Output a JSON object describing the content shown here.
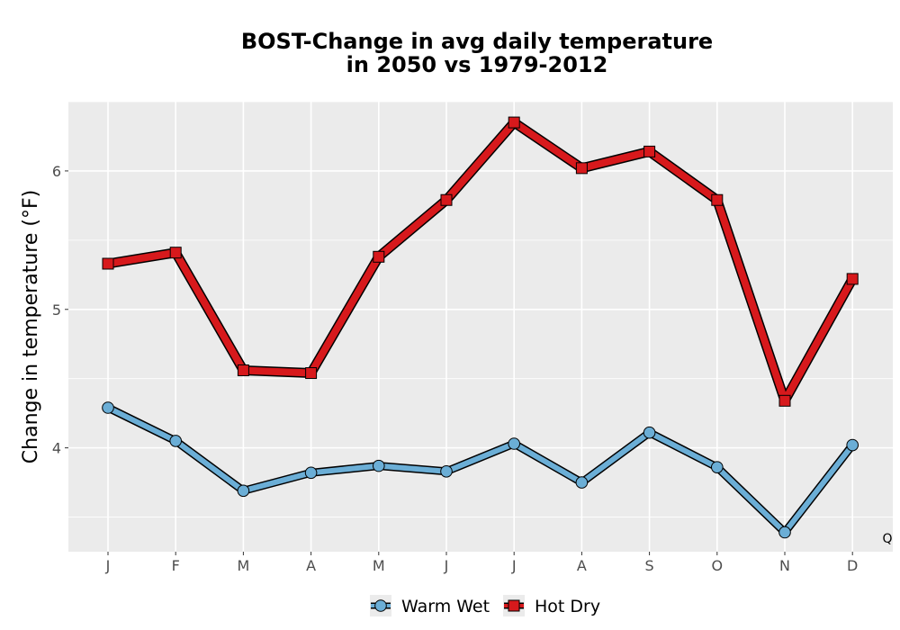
{
  "chart_data": {
    "type": "line",
    "title_lines": [
      "BOST-Change in avg daily temperature",
      "in 2050 vs 1979-2012"
    ],
    "xlabel": "",
    "ylabel": "Change in temperature (°F)",
    "categories": [
      "J",
      "F",
      "M",
      "A",
      "M",
      "J",
      "J",
      "A",
      "S",
      "O",
      "N",
      "D"
    ],
    "ylim": [
      3.25,
      6.5
    ],
    "yticks": [
      4,
      5,
      6
    ],
    "grid": true,
    "legend_position": "bottom",
    "corner_label": "Q",
    "series": [
      {
        "name": "Warm Wet",
        "marker": "circle",
        "color": "#6baed6",
        "values": [
          4.29,
          4.05,
          3.69,
          3.82,
          3.87,
          3.83,
          4.03,
          3.75,
          4.11,
          3.86,
          3.39,
          4.02
        ]
      },
      {
        "name": "Hot Dry",
        "marker": "square",
        "color": "#d7191c",
        "values": [
          5.33,
          5.41,
          4.56,
          4.54,
          5.38,
          5.79,
          6.35,
          6.02,
          6.14,
          5.79,
          4.34,
          5.22
        ]
      }
    ]
  }
}
